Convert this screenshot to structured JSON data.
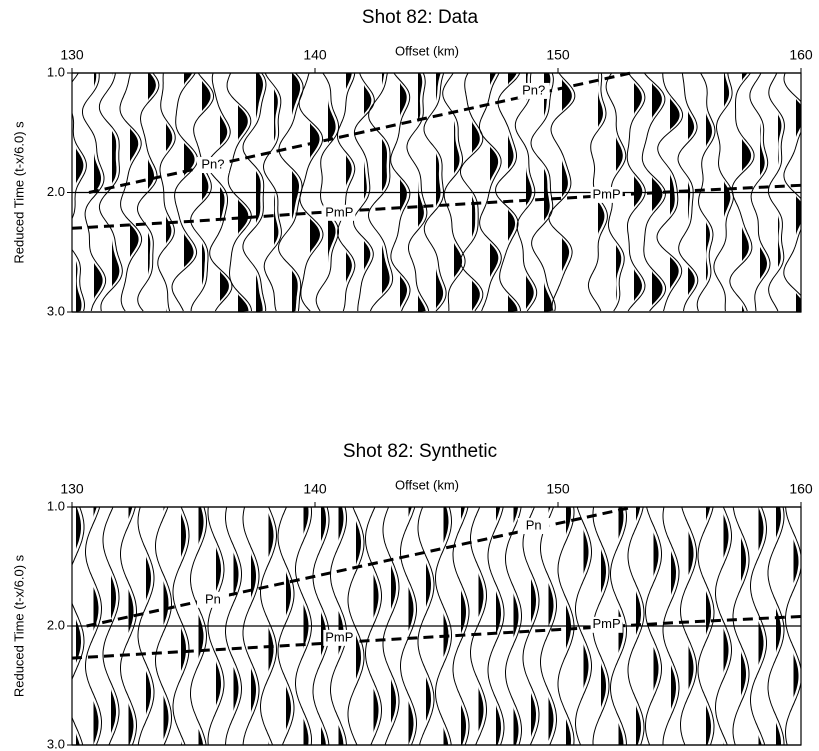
{
  "chart_data": [
    {
      "type": "line",
      "title": "Shot 82: Data",
      "x_label": "Offset (km)",
      "y_label": "Reduced Time (t-x/6.0) s",
      "xlim": [
        130,
        160
      ],
      "xticks": [
        130,
        140,
        150,
        160
      ],
      "ylim": [
        1.0,
        3.0
      ],
      "y_inverted": true,
      "yticks": [
        {
          "value": 1,
          "label": "1.0"
        },
        {
          "value": 2,
          "label": "2.0"
        },
        {
          "value": 3,
          "label": "3.0"
        }
      ],
      "series": [
        {
          "color": "#000000",
          "dashed": true,
          "x": [
            130.7,
            153.0
          ],
          "values": [
            2.0,
            1.0
          ]
        },
        {
          "color": "#000000",
          "dashed": true,
          "x": [
            130,
            135,
            140,
            145,
            150,
            155,
            160
          ],
          "values": [
            2.3,
            2.24,
            2.17,
            2.11,
            2.05,
            1.99,
            1.94
          ]
        }
      ],
      "annotations": [
        {
          "text": "Pn?",
          "x": 149,
          "y": 1.15
        },
        {
          "text": "Pn?",
          "x": 135.8,
          "y": 1.77
        },
        {
          "text": "PmP",
          "x": 141,
          "y": 2.17
        },
        {
          "text": "PmP",
          "x": 152,
          "y": 2.02
        }
      ]
    },
    {
      "type": "line",
      "title": "Shot 82: Synthetic",
      "x_label": "Offset (km)",
      "y_label": "Reduced Time (t-x/6.0) s",
      "xlim": [
        130,
        160
      ],
      "xticks": [
        130,
        140,
        150,
        160
      ],
      "ylim": [
        1.0,
        3.0
      ],
      "y_inverted": true,
      "yticks": [
        {
          "value": 1,
          "label": "1.0"
        },
        {
          "value": 2,
          "label": "2.0"
        },
        {
          "value": 3,
          "label": "3.0"
        }
      ],
      "series": [
        {
          "color": "#000000",
          "dashed": true,
          "x": [
            130.6,
            153.1
          ],
          "values": [
            2.0,
            1.0
          ]
        },
        {
          "color": "#000000",
          "dashed": true,
          "x": [
            130,
            135,
            140,
            145,
            150,
            155,
            160
          ],
          "values": [
            2.27,
            2.21,
            2.15,
            2.09,
            2.03,
            1.97,
            1.92
          ]
        }
      ],
      "annotations": [
        {
          "text": "Pn",
          "x": 149,
          "y": 1.16
        },
        {
          "text": "Pn",
          "x": 135.8,
          "y": 1.78
        },
        {
          "text": "PmP",
          "x": 141,
          "y": 2.1
        },
        {
          "text": "PmP",
          "x": 152,
          "y": 1.99
        }
      ]
    }
  ]
}
